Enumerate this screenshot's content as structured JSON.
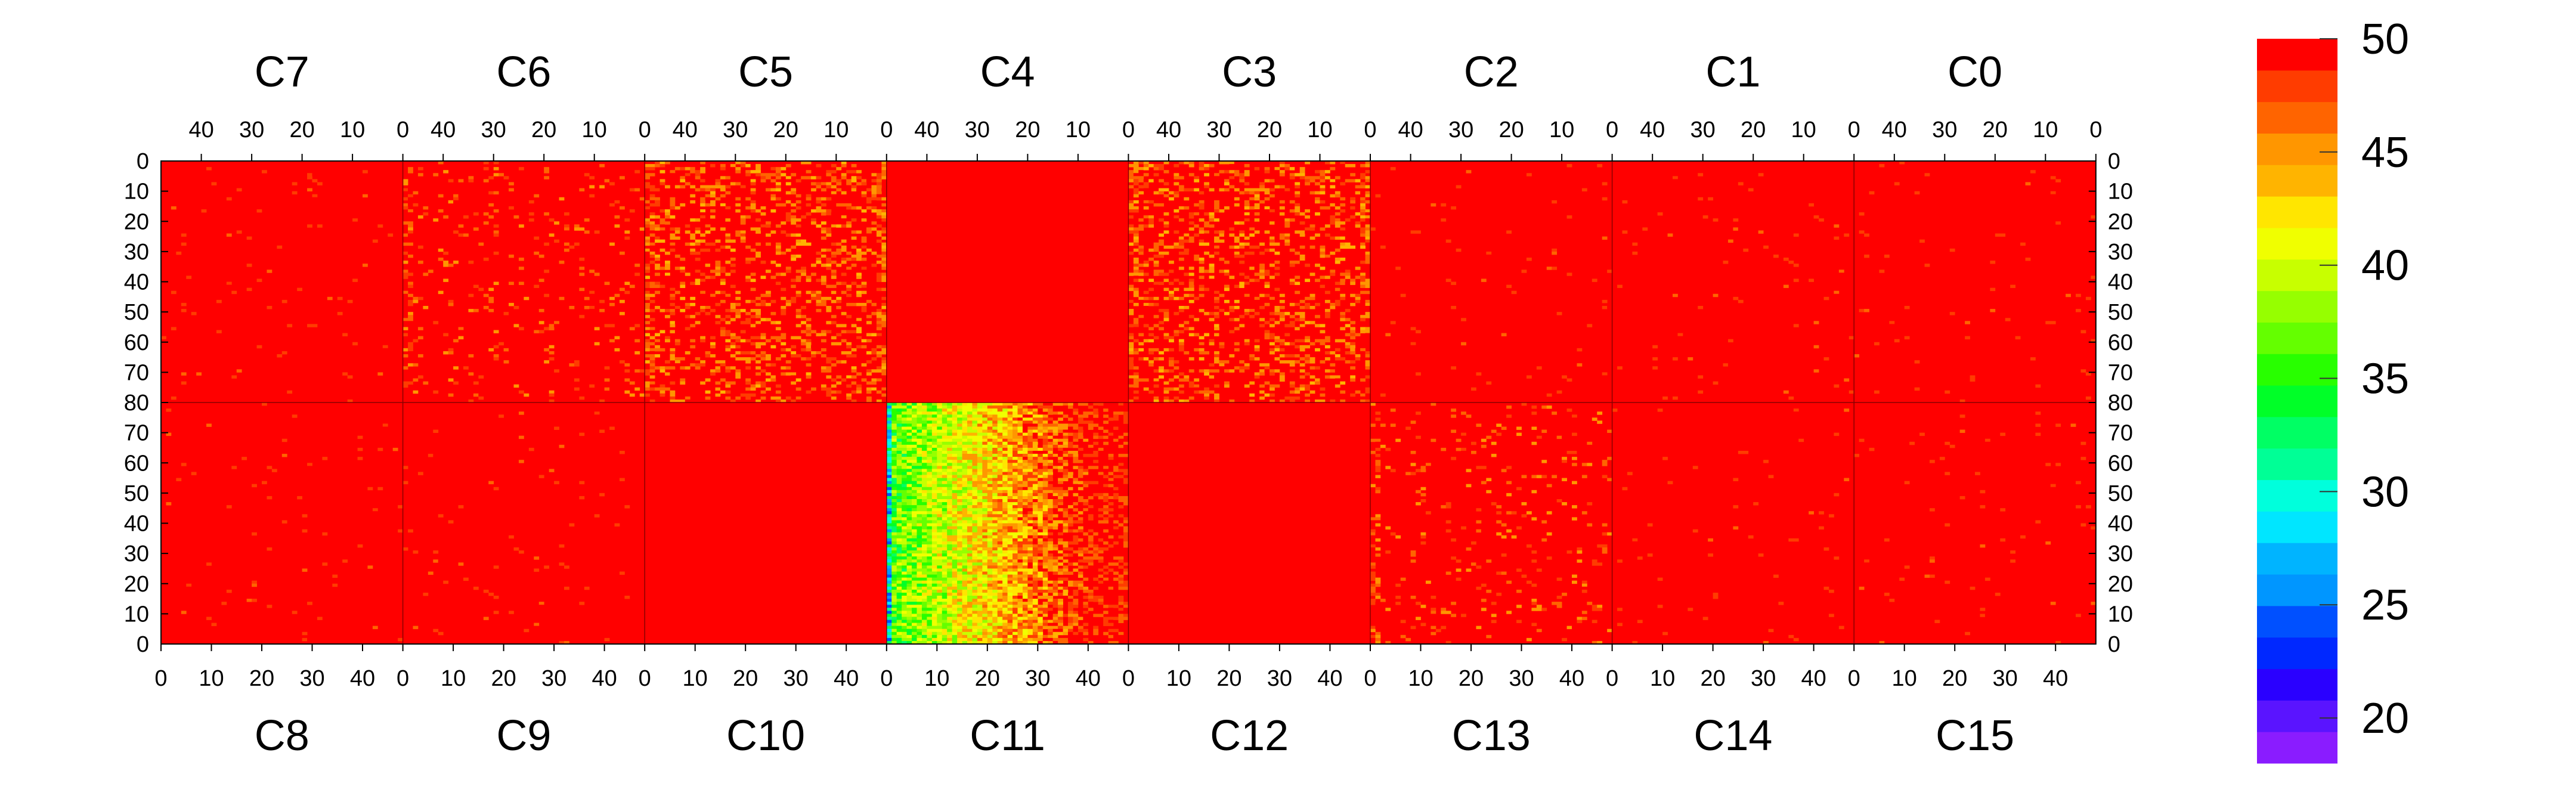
{
  "chart_data": {
    "type": "heatmap",
    "z_range": [
      18,
      50
    ],
    "colorbar": {
      "ticks": [
        "20",
        "25",
        "30",
        "35",
        "40",
        "45",
        "50"
      ],
      "tick_values": [
        20,
        25,
        30,
        35,
        40,
        45,
        50
      ],
      "colors": [
        "#8a1cff",
        "#5a14ff",
        "#2a00ff",
        "#0028ff",
        "#0050ff",
        "#0096ff",
        "#00b4ff",
        "#00e6ff",
        "#00ffdc",
        "#00ff96",
        "#00ff64",
        "#00ff28",
        "#28ff00",
        "#64ff00",
        "#96ff00",
        "#c8ff00",
        "#f0ff00",
        "#ffe600",
        "#ffb400",
        "#ff9600",
        "#ff6400",
        "#ff3c00",
        "#ff0000"
      ]
    },
    "x_ticks_top": [
      "40",
      "30",
      "20",
      "10",
      "0"
    ],
    "x_ticks_bottom": [
      "0",
      "10",
      "20",
      "30",
      "40"
    ],
    "y_ticks_top": [
      "0",
      "10",
      "20",
      "30",
      "40",
      "50",
      "60",
      "70",
      "80"
    ],
    "y_ticks_bottom": [
      "70",
      "60",
      "50",
      "40",
      "30",
      "20",
      "10",
      "0"
    ],
    "panels_top": [
      {
        "label": "C7",
        "level": "high"
      },
      {
        "label": "C6",
        "level": "medium"
      },
      {
        "label": "C5",
        "level": "noisy"
      },
      {
        "label": "C4",
        "level": "uniform"
      },
      {
        "label": "C3",
        "level": "noisy"
      },
      {
        "label": "C2",
        "level": "high"
      },
      {
        "label": "C1",
        "level": "high"
      },
      {
        "label": "C0",
        "level": "high"
      }
    ],
    "panels_bottom": [
      {
        "label": "C8",
        "level": "high"
      },
      {
        "label": "C9",
        "level": "high"
      },
      {
        "label": "C10",
        "level": "uniform"
      },
      {
        "label": "C11",
        "level": "low_gradient"
      },
      {
        "label": "C12",
        "level": "uniform"
      },
      {
        "label": "C13",
        "level": "medium"
      },
      {
        "label": "C14",
        "level": "high"
      },
      {
        "label": "C15",
        "level": "high"
      }
    ]
  }
}
